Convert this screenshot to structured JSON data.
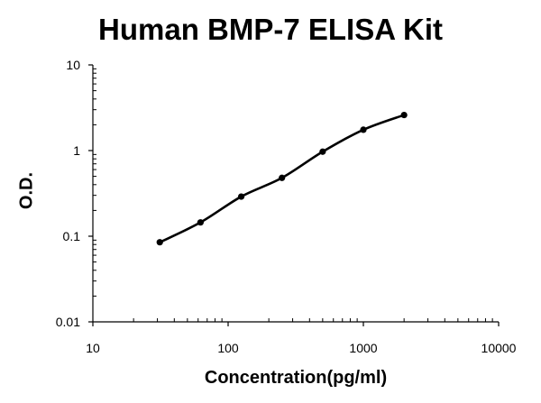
{
  "chart_data": {
    "type": "line",
    "title": "Human BMP-7 ELISA Kit",
    "xlabel": "Concentration(pg/ml)",
    "ylabel": "O.D.",
    "x_scale": "log",
    "y_scale": "log",
    "xlim": [
      10,
      10000
    ],
    "ylim": [
      0.01,
      10
    ],
    "x_ticks": [
      {
        "value": 10,
        "label": "10"
      },
      {
        "value": 100,
        "label": "100"
      },
      {
        "value": 1000,
        "label": "1000"
      },
      {
        "value": 10000,
        "label": "10000"
      }
    ],
    "y_ticks": [
      {
        "value": 10,
        "label": "10"
      },
      {
        "value": 1,
        "label": "1"
      },
      {
        "value": 0.1,
        "label": "0.1"
      },
      {
        "value": 0.01,
        "label": "0.01"
      }
    ],
    "grid": false,
    "series": [
      {
        "points": [
          {
            "x": 31.25,
            "y": 0.085
          },
          {
            "x": 62.5,
            "y": 0.145
          },
          {
            "x": 125,
            "y": 0.29
          },
          {
            "x": 250,
            "y": 0.48
          },
          {
            "x": 500,
            "y": 0.97
          },
          {
            "x": 1000,
            "y": 1.75
          },
          {
            "x": 2000,
            "y": 2.6
          }
        ]
      }
    ],
    "colors": {
      "line": "#000000",
      "marker": "#000000"
    }
  }
}
